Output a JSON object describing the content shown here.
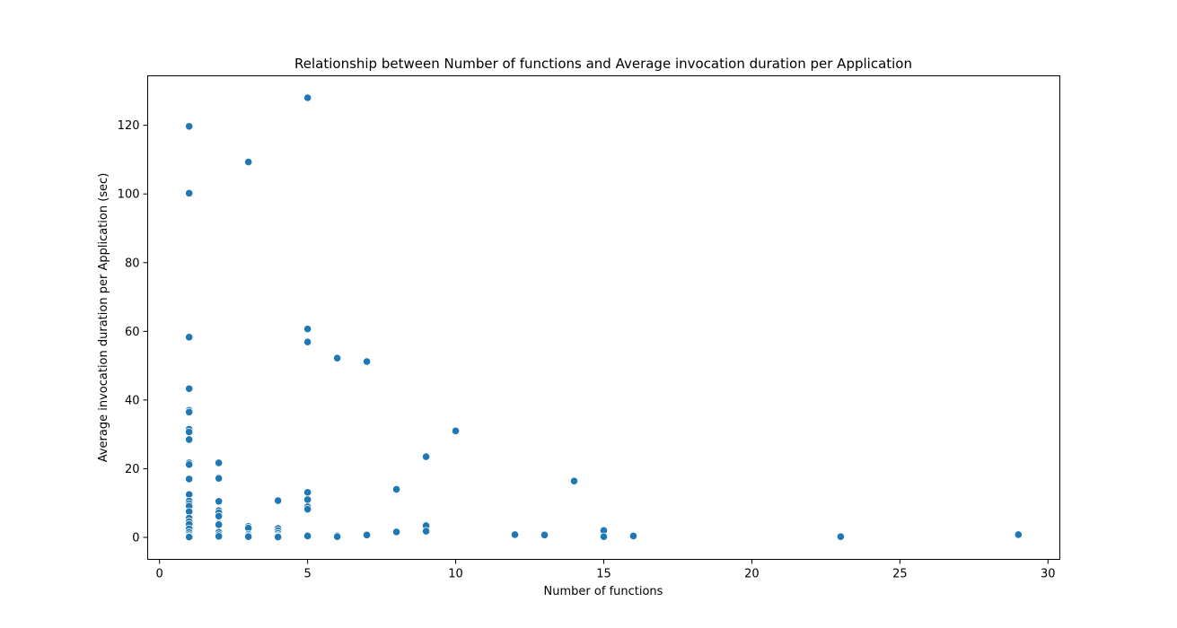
{
  "chart_data": {
    "type": "scatter",
    "title": "Relationship between Number of functions and Average invocation duration per Application",
    "xlabel": "Number of functions",
    "ylabel": "Average invocation duration per Application (sec)",
    "xlim": [
      -0.4,
      30.4
    ],
    "ylim": [
      -6.4,
      134.4
    ],
    "xticks": [
      0,
      5,
      10,
      15,
      20,
      25,
      30
    ],
    "yticks": [
      0,
      20,
      40,
      60,
      80,
      100,
      120
    ],
    "grid": false,
    "marker_color": "#1f77b4",
    "points": [
      [
        1,
        119.7
      ],
      [
        1,
        100.2
      ],
      [
        1,
        58.3
      ],
      [
        1,
        43.3
      ],
      [
        1,
        37.0
      ],
      [
        1,
        36.5
      ],
      [
        1,
        31.5
      ],
      [
        1,
        30.7
      ],
      [
        1,
        28.5
      ],
      [
        1,
        21.7
      ],
      [
        1,
        21.2
      ],
      [
        1,
        17.0
      ],
      [
        1,
        12.5
      ],
      [
        1,
        10.6
      ],
      [
        1,
        9.8
      ],
      [
        1,
        9.1
      ],
      [
        1,
        7.5
      ],
      [
        1,
        5.6
      ],
      [
        1,
        4.6
      ],
      [
        1,
        3.8
      ],
      [
        1,
        2.5
      ],
      [
        1,
        1.5
      ],
      [
        1,
        0.8
      ],
      [
        1,
        0.3
      ],
      [
        1,
        0.1
      ],
      [
        2,
        21.7
      ],
      [
        2,
        17.2
      ],
      [
        2,
        10.5
      ],
      [
        2,
        7.8
      ],
      [
        2,
        7.2
      ],
      [
        2,
        6.2
      ],
      [
        2,
        4.0
      ],
      [
        2,
        3.7
      ],
      [
        2,
        1.5
      ],
      [
        2,
        0.8
      ],
      [
        2,
        0.3
      ],
      [
        3,
        109.3
      ],
      [
        3,
        3.2
      ],
      [
        3,
        2.7
      ],
      [
        3,
        0.9
      ],
      [
        3,
        0.5
      ],
      [
        3,
        0.2
      ],
      [
        4,
        10.7
      ],
      [
        4,
        2.6
      ],
      [
        4,
        1.9
      ],
      [
        4,
        1.2
      ],
      [
        4,
        0.6
      ],
      [
        4,
        0.3
      ],
      [
        4,
        0.1
      ],
      [
        5,
        128.0
      ],
      [
        5,
        60.7
      ],
      [
        5,
        56.9
      ],
      [
        5,
        13.1
      ],
      [
        5,
        11.0
      ],
      [
        5,
        8.9
      ],
      [
        5,
        8.2
      ],
      [
        5,
        0.6
      ],
      [
        5,
        0.4
      ],
      [
        6,
        52.2
      ],
      [
        6,
        0.5
      ],
      [
        6,
        0.2
      ],
      [
        7,
        51.2
      ],
      [
        7,
        0.7
      ],
      [
        8,
        14.0
      ],
      [
        8,
        1.6
      ],
      [
        9,
        23.5
      ],
      [
        9,
        3.4
      ],
      [
        9,
        1.8
      ],
      [
        10,
        31.0
      ],
      [
        12,
        0.8
      ],
      [
        13,
        0.7
      ],
      [
        14,
        16.4
      ],
      [
        15,
        2.0
      ],
      [
        15,
        0.2
      ],
      [
        16,
        0.4
      ],
      [
        23,
        0.2
      ],
      [
        29,
        0.8
      ]
    ]
  }
}
